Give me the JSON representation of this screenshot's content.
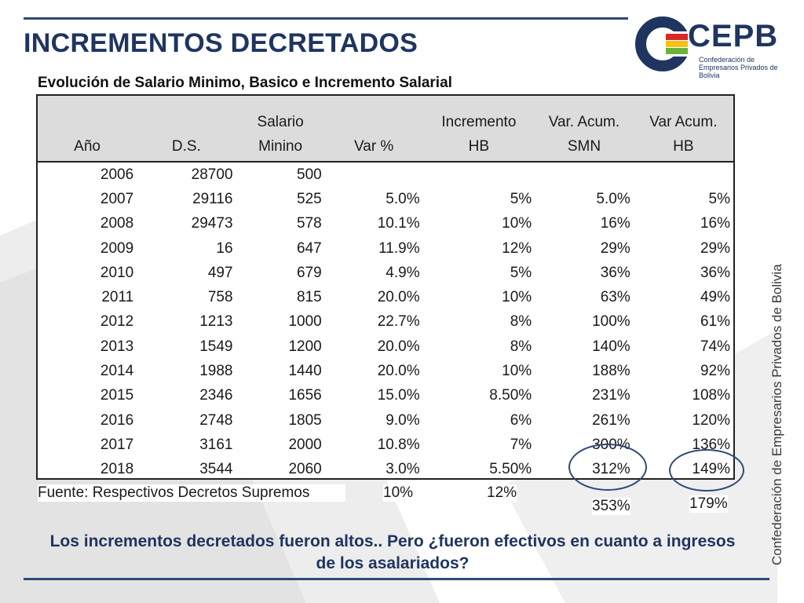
{
  "title": "INCREMENTOS DECRETADOS",
  "subtitle": "Evolución de Salario Minimo, Basico e Incremento Salarial",
  "logo": {
    "name": "CEPB",
    "subtitle": "Confederación de Empresarios Privados de Bolivia"
  },
  "vertical_text": "Confederación de Empresarios Privados de Bolivia",
  "table": {
    "headers": {
      "anio": "Año",
      "ds": "D.S.",
      "salario_1": "Salario",
      "salario_2": "Minino",
      "var": "Var %",
      "incremento_1": "Incremento",
      "incremento_2": "HB",
      "varacum_smn_1": "Var. Acum.",
      "varacum_smn_2": "SMN",
      "varacum_hb_1": "Var Acum.",
      "varacum_hb_2": "HB"
    },
    "rows": [
      [
        "2006",
        "28700",
        "500",
        "",
        "",
        "",
        ""
      ],
      [
        "2007",
        "29116",
        "525",
        "5.0%",
        "5%",
        "5.0%",
        "5%"
      ],
      [
        "2008",
        "29473",
        "578",
        "10.1%",
        "10%",
        "16%",
        "16%"
      ],
      [
        "2009",
        "16",
        "647",
        "11.9%",
        "12%",
        "29%",
        "29%"
      ],
      [
        "2010",
        "497",
        "679",
        "4.9%",
        "5%",
        "36%",
        "36%"
      ],
      [
        "2011",
        "758",
        "815",
        "20.0%",
        "10%",
        "63%",
        "49%"
      ],
      [
        "2012",
        "1213",
        "1000",
        "22.7%",
        "8%",
        "100%",
        "61%"
      ],
      [
        "2013",
        "1549",
        "1200",
        "20.0%",
        "8%",
        "140%",
        "74%"
      ],
      [
        "2014",
        "1988",
        "1440",
        "20.0%",
        "10%",
        "188%",
        "92%"
      ],
      [
        "2015",
        "2346",
        "1656",
        "15.0%",
        "8.50%",
        "231%",
        "108%"
      ],
      [
        "2016",
        "2748",
        "1805",
        "9.0%",
        "6%",
        "261%",
        "120%"
      ],
      [
        "2017",
        "3161",
        "2000",
        "10.8%",
        "7%",
        "300%",
        "136%"
      ],
      [
        "2018",
        "3544",
        "2060",
        "3.0%",
        "5.50%",
        "312%",
        "149%"
      ]
    ]
  },
  "source": "Fuente: Respectivos Decretos Supremos",
  "extras": {
    "var": "10%",
    "incremento": "12%",
    "smn": "353%",
    "hb": "179%"
  },
  "question": "Los incrementos decretados fueron altos.. Pero ¿fueron efectivos en cuanto a ingresos de los asalariados?",
  "colors": {
    "navy": "#1f3560",
    "header_gray": "#dcdcdc",
    "logo_green": "#6ab23e",
    "logo_yellow": "#f2c40f",
    "logo_red": "#d8272d"
  }
}
